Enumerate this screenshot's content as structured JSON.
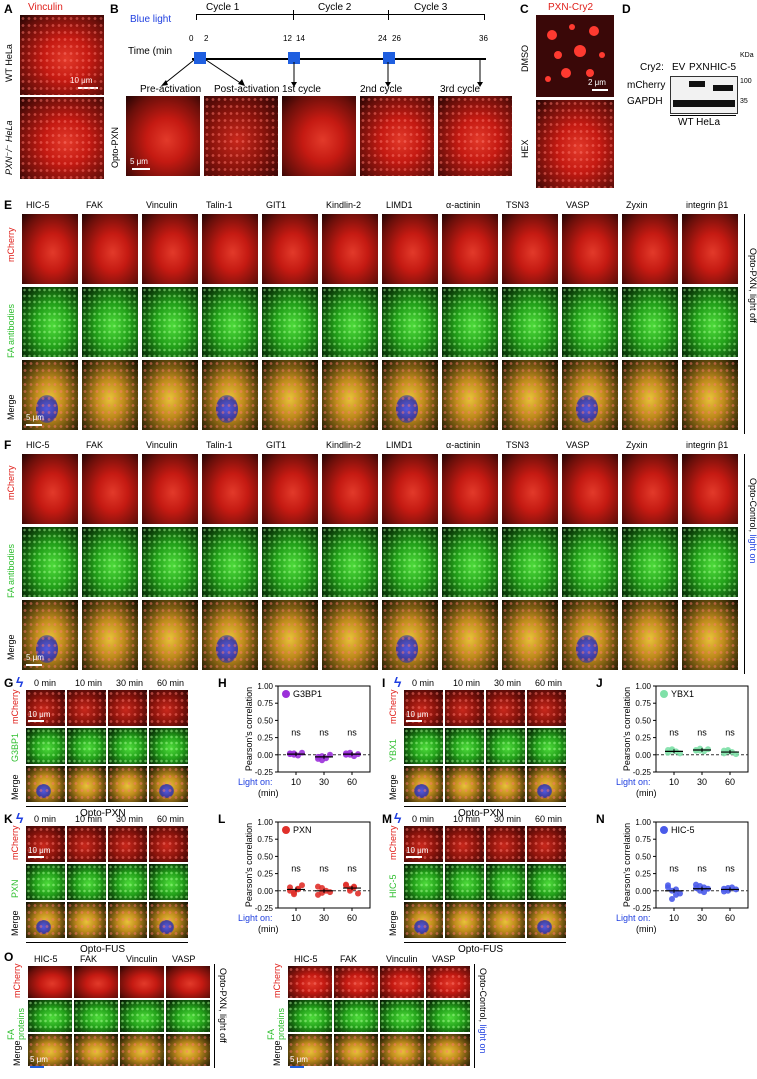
{
  "panels": {
    "A": {
      "letter": "A",
      "title": "Vinculin",
      "row1": "WT HeLa",
      "row2": "PXN⁻/⁻ HeLa",
      "scale": "10 μm"
    },
    "B": {
      "letter": "B",
      "blue_light": "Blue light",
      "cycles": [
        "Cycle 1",
        "Cycle 2",
        "Cycle 3"
      ],
      "time_label": "Time (min",
      "ticks": [
        "0",
        "2",
        "12",
        "14",
        "24",
        "26",
        "36"
      ],
      "stages": [
        "Pre-activation",
        "Post-activation",
        "1st cycle",
        "2nd cycle",
        "3rd cycle"
      ],
      "row": "Opto-PXN",
      "scale": "5 μm"
    },
    "C": {
      "letter": "C",
      "title": "PXN-Cry2",
      "rows": [
        "DMSO",
        "HEX"
      ],
      "scale": "2 μm"
    },
    "D": {
      "letter": "D",
      "cry2": "Cry2:",
      "lanes": [
        "EV",
        "PXN",
        "HIC-5"
      ],
      "rows": [
        "mCherry",
        "GAPDH"
      ],
      "kda": "KDa",
      "marks": [
        "100",
        "35"
      ],
      "cell": "WT HeLa"
    },
    "E": {
      "letter": "E",
      "side": "Opto-PXN, light off",
      "rows": [
        "mCherry",
        "FA antibodies",
        "Merge"
      ],
      "scale": "5 μm"
    },
    "F": {
      "letter": "F",
      "side_a": "Opto-Control, ",
      "side_b": "light on",
      "rows": [
        "mCherry",
        "FA antibodies",
        "Merge"
      ],
      "scale": "5 μm"
    },
    "columns": [
      "HIC-5",
      "FAK",
      "Vinculin",
      "Talin-1",
      "GIT1",
      "Kindlin-2",
      "LIMD1",
      "α-actinin",
      "TSN3",
      "VASP",
      "Zyxin",
      "integrin β1"
    ],
    "G": {
      "letter": "G",
      "times": [
        "0 min",
        "10 min",
        "30 min",
        "60 min"
      ],
      "rows": [
        "mCherry",
        "G3BP1",
        "Merge"
      ],
      "bottom": "Opto-PXN",
      "scale": "10 μm"
    },
    "I": {
      "letter": "I",
      "times": [
        "0 min",
        "10 min",
        "30 min",
        "60 min"
      ],
      "rows": [
        "mCherry",
        "YBX1",
        "Merge"
      ],
      "bottom": "Opto-PXN",
      "scale": "10 μm"
    },
    "K": {
      "letter": "K",
      "times": [
        "0 min",
        "10 min",
        "30 min",
        "60 min"
      ],
      "rows": [
        "mCherry",
        "PXN",
        "Merge"
      ],
      "bottom": "Opto-FUS",
      "scale": "10 μm"
    },
    "M": {
      "letter": "M",
      "times": [
        "0 min",
        "10 min",
        "30 min",
        "60 min"
      ],
      "rows": [
        "mCherry",
        "HIC-5",
        "Merge"
      ],
      "bottom": "Opto-FUS",
      "scale": "10 μm"
    },
    "O": {
      "letter": "O",
      "cols": [
        "HIC-5",
        "FAK",
        "Vinculin",
        "VASP"
      ],
      "left_side": "Opto-PXN, light off",
      "right_side_a": "Opto-Control, ",
      "right_side_b": "light on",
      "rows": [
        "mCherry",
        "FA proteins",
        "Merge"
      ],
      "row_fa": "FA",
      "row_proteins": "proteins",
      "scale": "5 μm"
    }
  },
  "chart_data": [
    {
      "panel": "H",
      "type": "scatter",
      "legend": "G3BP1",
      "legend_color": "#9b30d9",
      "ylabel": "Pearson's correlation",
      "xlabel_a": "Light on:",
      "xlabel_b": "(min)",
      "categories": [
        "10",
        "30",
        "60"
      ],
      "ylim": [
        -0.25,
        1.0
      ],
      "yticks": [
        "-0.25",
        "0.00",
        "0.25",
        "0.50",
        "0.75",
        "1.00"
      ],
      "means": [
        0.01,
        -0.03,
        0.01
      ],
      "sig": [
        "ns",
        "ns",
        "ns"
      ],
      "points": [
        [
          0.02,
          0.0,
          -0.01,
          0.03,
          0.01,
          0.02
        ],
        [
          -0.06,
          -0.02,
          -0.05,
          0.0,
          -0.03,
          -0.08
        ],
        [
          0.0,
          0.03,
          -0.02,
          0.01,
          0.02,
          0.0
        ]
      ]
    },
    {
      "panel": "J",
      "type": "scatter",
      "legend": "YBX1",
      "legend_color": "#7fe0a8",
      "ylabel": "Pearson's correlation",
      "xlabel_a": "Light on:",
      "xlabel_b": "(min)",
      "categories": [
        "10",
        "30",
        "60"
      ],
      "ylim": [
        -0.25,
        1.0
      ],
      "yticks": [
        "-0.25",
        "0.00",
        "0.25",
        "0.50",
        "0.75",
        "1.00"
      ],
      "means": [
        0.05,
        0.07,
        0.04
      ],
      "sig": [
        "ns",
        "ns",
        "ns"
      ],
      "points": [
        [
          0.03,
          0.08,
          0.05,
          0.02,
          0.07,
          0.06
        ],
        [
          0.06,
          0.09,
          0.05,
          0.08,
          0.07,
          0.06
        ],
        [
          0.02,
          0.07,
          0.04,
          0.01,
          0.06,
          0.05
        ]
      ]
    },
    {
      "panel": "L",
      "type": "scatter",
      "legend": "PXN",
      "legend_color": "#e0302a",
      "ylabel": "Pearson's correlation",
      "xlabel_a": "Light on:",
      "xlabel_b": "(min)",
      "categories": [
        "10",
        "30",
        "60"
      ],
      "ylim": [
        -0.25,
        1.0
      ],
      "yticks": [
        "-0.25",
        "0.00",
        "0.25",
        "0.50",
        "0.75",
        "1.00"
      ],
      "means": [
        0.02,
        0.0,
        0.04
      ],
      "sig": [
        "ns",
        "ns",
        "ns"
      ],
      "points": [
        [
          0.05,
          -0.03,
          0.02,
          0.08,
          0.0,
          -0.05,
          0.03
        ],
        [
          -0.06,
          0.04,
          0.0,
          -0.02,
          0.06,
          -0.03
        ],
        [
          0.08,
          0.0,
          0.05,
          -0.04,
          0.09,
          0.03,
          0.06
        ]
      ]
    },
    {
      "panel": "N",
      "type": "scatter",
      "legend": "HIC-5",
      "legend_color": "#4a5bea",
      "ylabel": "Pearson's correlation",
      "xlabel_a": "Light on:",
      "xlabel_b": "(min)",
      "categories": [
        "10",
        "30",
        "60"
      ],
      "ylim": [
        -0.25,
        1.0
      ],
      "yticks": [
        "-0.25",
        "0.00",
        "0.25",
        "0.50",
        "0.75",
        "1.00"
      ],
      "means": [
        0.0,
        0.03,
        0.02
      ],
      "sig": [
        "ns",
        "ns",
        "ns"
      ],
      "points": [
        [
          0.05,
          -0.12,
          0.02,
          -0.04,
          0.08,
          0.0,
          -0.06
        ],
        [
          0.04,
          0.07,
          -0.02,
          0.03,
          0.09,
          0.0,
          0.05
        ],
        [
          0.03,
          0.0,
          0.05,
          0.02,
          -0.01,
          0.04
        ]
      ]
    }
  ]
}
